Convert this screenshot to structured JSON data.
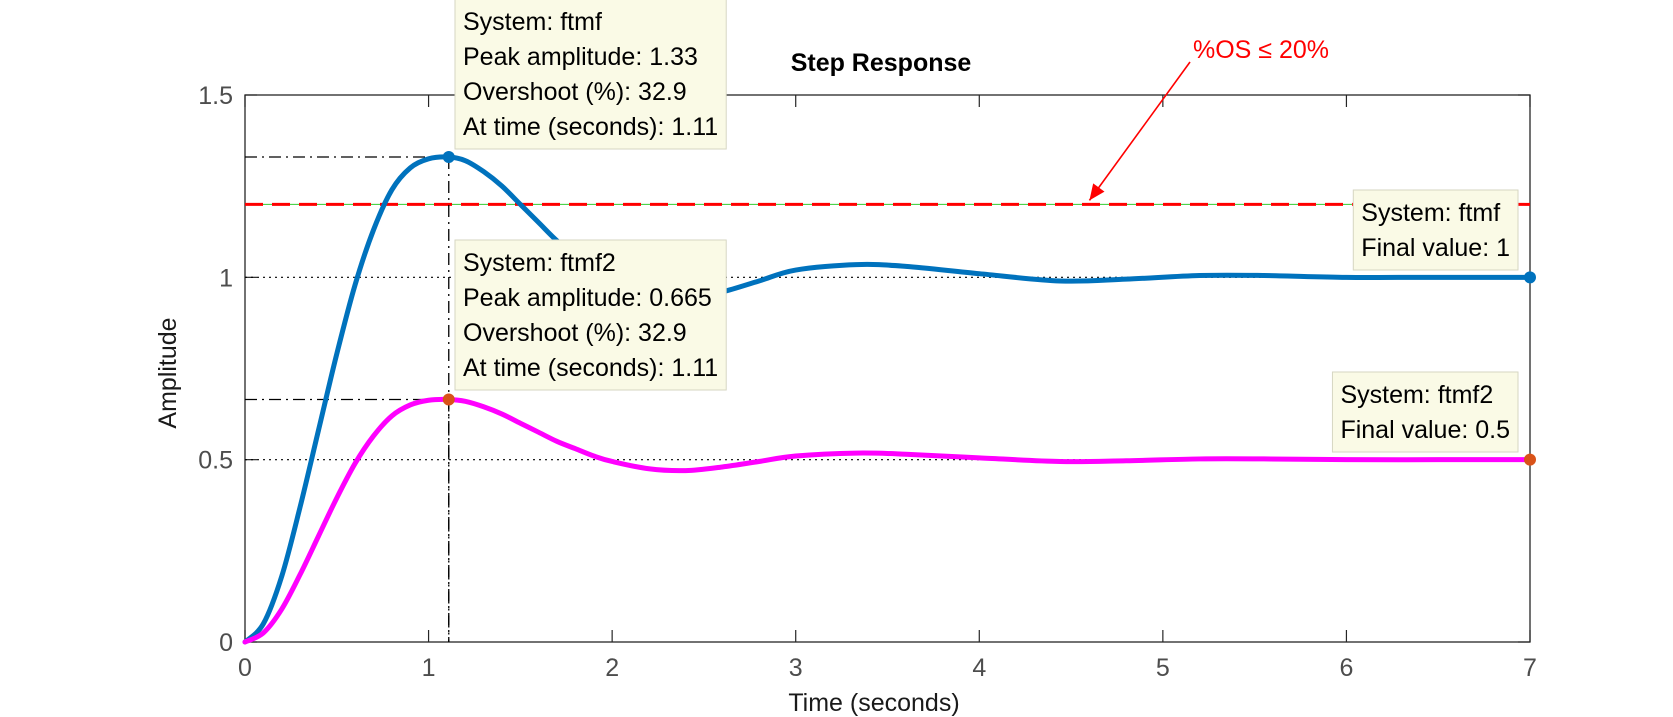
{
  "chart_data": {
    "type": "line",
    "title": "Step Response",
    "xlabel": "Time (seconds)",
    "ylabel": "Amplitude",
    "xlim": [
      0,
      7
    ],
    "ylim": [
      0,
      1.5
    ],
    "x_ticks": [
      "0",
      "1",
      "2",
      "3",
      "4",
      "5",
      "6",
      "7"
    ],
    "y_ticks": [
      "0",
      "0.5",
      "1",
      "1.5"
    ],
    "grid": false,
    "series": [
      {
        "name": "ftmf",
        "color": "#0072BD",
        "x": [
          0,
          0.1,
          0.2,
          0.3,
          0.4,
          0.5,
          0.6,
          0.7,
          0.8,
          0.9,
          1.0,
          1.11,
          1.2,
          1.3,
          1.4,
          1.5,
          1.6,
          1.7,
          1.8,
          1.9,
          2.0,
          2.2,
          2.4,
          2.6,
          2.8,
          3.0,
          3.33,
          3.6,
          4.0,
          4.44,
          4.8,
          5.2,
          5.55,
          6.0,
          6.5,
          7.0
        ],
        "values": [
          0,
          0.05,
          0.18,
          0.37,
          0.58,
          0.79,
          0.98,
          1.13,
          1.24,
          1.3,
          1.325,
          1.33,
          1.32,
          1.29,
          1.25,
          1.2,
          1.15,
          1.1,
          1.06,
          1.02,
          0.99,
          0.95,
          0.94,
          0.96,
          0.99,
          1.02,
          1.035,
          1.03,
          1.01,
          0.99,
          0.995,
          1.005,
          1.005,
          1.0,
          1.0,
          1.0
        ]
      },
      {
        "name": "ftmf2",
        "color": "#FF00FF",
        "x": [
          0,
          0.1,
          0.2,
          0.3,
          0.4,
          0.5,
          0.6,
          0.7,
          0.8,
          0.9,
          1.0,
          1.11,
          1.2,
          1.3,
          1.4,
          1.5,
          1.6,
          1.7,
          1.8,
          1.9,
          2.0,
          2.2,
          2.4,
          2.6,
          2.8,
          3.0,
          3.33,
          3.6,
          4.0,
          4.44,
          4.8,
          5.2,
          5.55,
          6.0,
          6.5,
          7.0
        ],
        "values": [
          0,
          0.025,
          0.09,
          0.185,
          0.29,
          0.395,
          0.49,
          0.565,
          0.62,
          0.65,
          0.663,
          0.665,
          0.66,
          0.645,
          0.625,
          0.6,
          0.575,
          0.55,
          0.53,
          0.51,
          0.495,
          0.475,
          0.47,
          0.48,
          0.495,
          0.51,
          0.518,
          0.515,
          0.505,
          0.495,
          0.497,
          0.502,
          0.502,
          0.5,
          0.5,
          0.5
        ]
      }
    ],
    "reference_lines": [
      {
        "y": 1.2,
        "color": "#FF0000",
        "style": "dashed"
      }
    ],
    "annotation": {
      "text": "%OS ≤ 20%",
      "color": "#FF0000",
      "arrow_to": {
        "x": 4.6,
        "y": 1.2
      }
    },
    "datatips": [
      {
        "series": "ftmf",
        "x": 1.11,
        "y": 1.33,
        "lines": [
          "System: ftmf",
          "Peak amplitude: 1.33",
          "Overshoot (%): 32.9",
          "At time (seconds): 1.11"
        ]
      },
      {
        "series": "ftmf2",
        "x": 1.11,
        "y": 0.665,
        "lines": [
          "System: ftmf2",
          "Peak amplitude: 0.665",
          "Overshoot (%): 32.9",
          "At time (seconds): 1.11"
        ]
      },
      {
        "series": "ftmf",
        "x": 7.0,
        "y": 1.0,
        "lines": [
          "System: ftmf",
          "Final value: 1"
        ]
      },
      {
        "series": "ftmf2",
        "x": 7.0,
        "y": 0.5,
        "lines": [
          "System: ftmf2",
          "Final value: 0.5"
        ]
      }
    ]
  }
}
